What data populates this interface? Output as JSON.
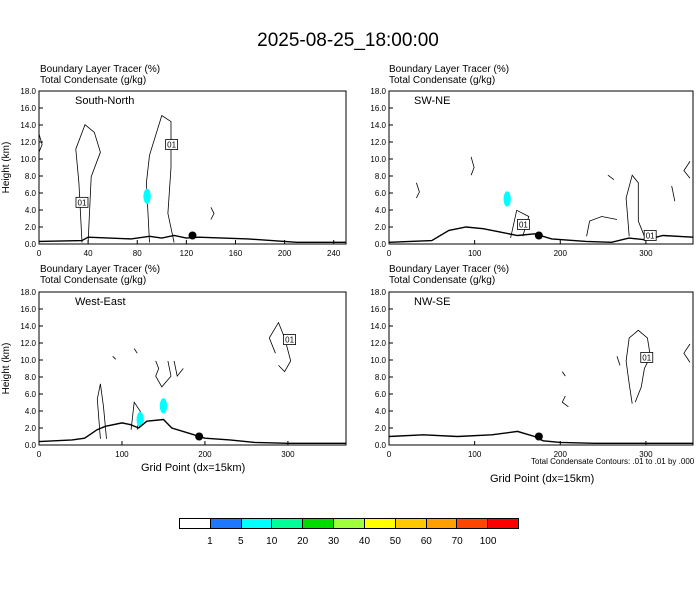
{
  "title": "2025-08-25_18:00:00",
  "panel_header": {
    "line1": "Boundary Layer Tracer   (%)",
    "line2": "Total Condensate   (g/kg)"
  },
  "y_axis_label": "Height (km)",
  "x_axis_label": "Grid Point (dx=15km)",
  "footnote": "Total Condensate Contours: .01 to .01 by .000",
  "colorbar": {
    "colors": [
      "#ffffff",
      "#1e78ff",
      "#00ffff",
      "#00ff96",
      "#00dc00",
      "#a0ff3c",
      "#ffff00",
      "#ffc800",
      "#ffa000",
      "#ff4600",
      "#ff0000"
    ],
    "labels": [
      "1",
      "5",
      "10",
      "20",
      "30",
      "40",
      "50",
      "60",
      "70",
      "100"
    ]
  },
  "chart_data": [
    {
      "type": "area",
      "panel": "South-North",
      "title": "South-North",
      "xlabel": "",
      "ylabel": "Height (km)",
      "xlim": [
        0,
        250
      ],
      "ylim": [
        0,
        18
      ],
      "xticks": [
        0,
        40,
        80,
        120,
        160,
        200,
        240
      ],
      "yticks": [
        "0.0",
        "2.0",
        "4.0",
        "6.0",
        "8.0",
        "10.0",
        "12.0",
        "14.0",
        "16.0",
        "18.0"
      ],
      "terrain": {
        "x": [
          0,
          35,
          40,
          75,
          90,
          100,
          110,
          120,
          130,
          170,
          210,
          250
        ],
        "y": [
          0.3,
          0.4,
          0.8,
          0.6,
          0.9,
          0.7,
          1.0,
          0.7,
          0.8,
          0.6,
          0.2,
          0.2
        ]
      },
      "site_marker": {
        "x": 125,
        "y": 1.0
      },
      "contour_labels": [
        {
          "x": 35,
          "y": 4.9,
          "text": "01"
        },
        {
          "x": 108,
          "y": 11.7,
          "text": "01"
        }
      ],
      "tracer_patches": [
        {
          "x": 88,
          "y": 5.6,
          "value": 5
        }
      ]
    },
    {
      "type": "area",
      "panel": "SW-NE",
      "title": "SW-NE",
      "xlabel": "",
      "ylabel": "",
      "xlim": [
        0,
        355
      ],
      "ylim": [
        0,
        18
      ],
      "xticks": [
        0,
        100,
        200,
        300
      ],
      "yticks": [
        "0.0",
        "2.0",
        "4.0",
        "6.0",
        "8.0",
        "10.0",
        "12.0",
        "14.0",
        "16.0",
        "18.0"
      ],
      "terrain": {
        "x": [
          0,
          50,
          70,
          90,
          110,
          130,
          150,
          170,
          190,
          230,
          260,
          280,
          300,
          320,
          355
        ],
        "y": [
          0.2,
          0.4,
          1.6,
          2.0,
          1.8,
          1.4,
          1.0,
          1.2,
          0.6,
          0.3,
          0.2,
          0.7,
          0.5,
          1.0,
          0.8
        ]
      },
      "site_marker": {
        "x": 175,
        "y": 1.0
      },
      "contour_labels": [
        {
          "x": 157,
          "y": 2.3,
          "text": "01"
        },
        {
          "x": 305,
          "y": 1.0,
          "text": "01"
        }
      ],
      "tracer_patches": [
        {
          "x": 138,
          "y": 5.3,
          "value": 5
        }
      ]
    },
    {
      "type": "area",
      "panel": "West-East",
      "title": "West-East",
      "xlabel": "Grid Point (dx=15km)",
      "ylabel": "Height (km)",
      "xlim": [
        0,
        370
      ],
      "ylim": [
        0,
        18
      ],
      "xticks": [
        0,
        100,
        200,
        300
      ],
      "yticks": [
        "0.0",
        "2.0",
        "4.0",
        "6.0",
        "8.0",
        "10.0",
        "12.0",
        "14.0",
        "16.0",
        "18.0"
      ],
      "terrain": {
        "x": [
          0,
          40,
          55,
          70,
          80,
          100,
          110,
          120,
          130,
          150,
          160,
          180,
          200,
          230,
          260,
          300,
          340,
          370
        ],
        "y": [
          0.4,
          0.6,
          0.8,
          1.8,
          2.2,
          2.6,
          2.4,
          2.0,
          2.8,
          3.0,
          2.0,
          1.4,
          0.8,
          0.6,
          0.3,
          0.2,
          0.2,
          0.2
        ]
      },
      "site_marker": {
        "x": 193,
        "y": 1.0
      },
      "contour_labels": [
        {
          "x": 302,
          "y": 12.4,
          "text": "01"
        }
      ],
      "tracer_patches": [
        {
          "x": 122,
          "y": 3.0,
          "value": 5
        },
        {
          "x": 150,
          "y": 4.6,
          "value": 5
        }
      ]
    },
    {
      "type": "area",
      "panel": "NW-SE",
      "title": "NW-SE",
      "xlabel": "Grid Point (dx=15km)",
      "ylabel": "",
      "xlim": [
        0,
        355
      ],
      "ylim": [
        0,
        18
      ],
      "xticks": [
        0,
        100,
        200,
        300
      ],
      "yticks": [
        "0.0",
        "2.0",
        "4.0",
        "6.0",
        "8.0",
        "10.0",
        "12.0",
        "14.0",
        "16.0",
        "18.0"
      ],
      "terrain": {
        "x": [
          0,
          40,
          80,
          120,
          150,
          170,
          180,
          200,
          240,
          280,
          320,
          355
        ],
        "y": [
          1.0,
          1.2,
          1.0,
          1.2,
          1.6,
          1.0,
          0.5,
          0.3,
          0.2,
          0.2,
          0.2,
          0.2
        ]
      },
      "site_marker": {
        "x": 175,
        "y": 1.0
      },
      "contour_labels": [
        {
          "x": 301,
          "y": 10.3,
          "text": "01"
        }
      ],
      "tracer_patches": []
    }
  ]
}
